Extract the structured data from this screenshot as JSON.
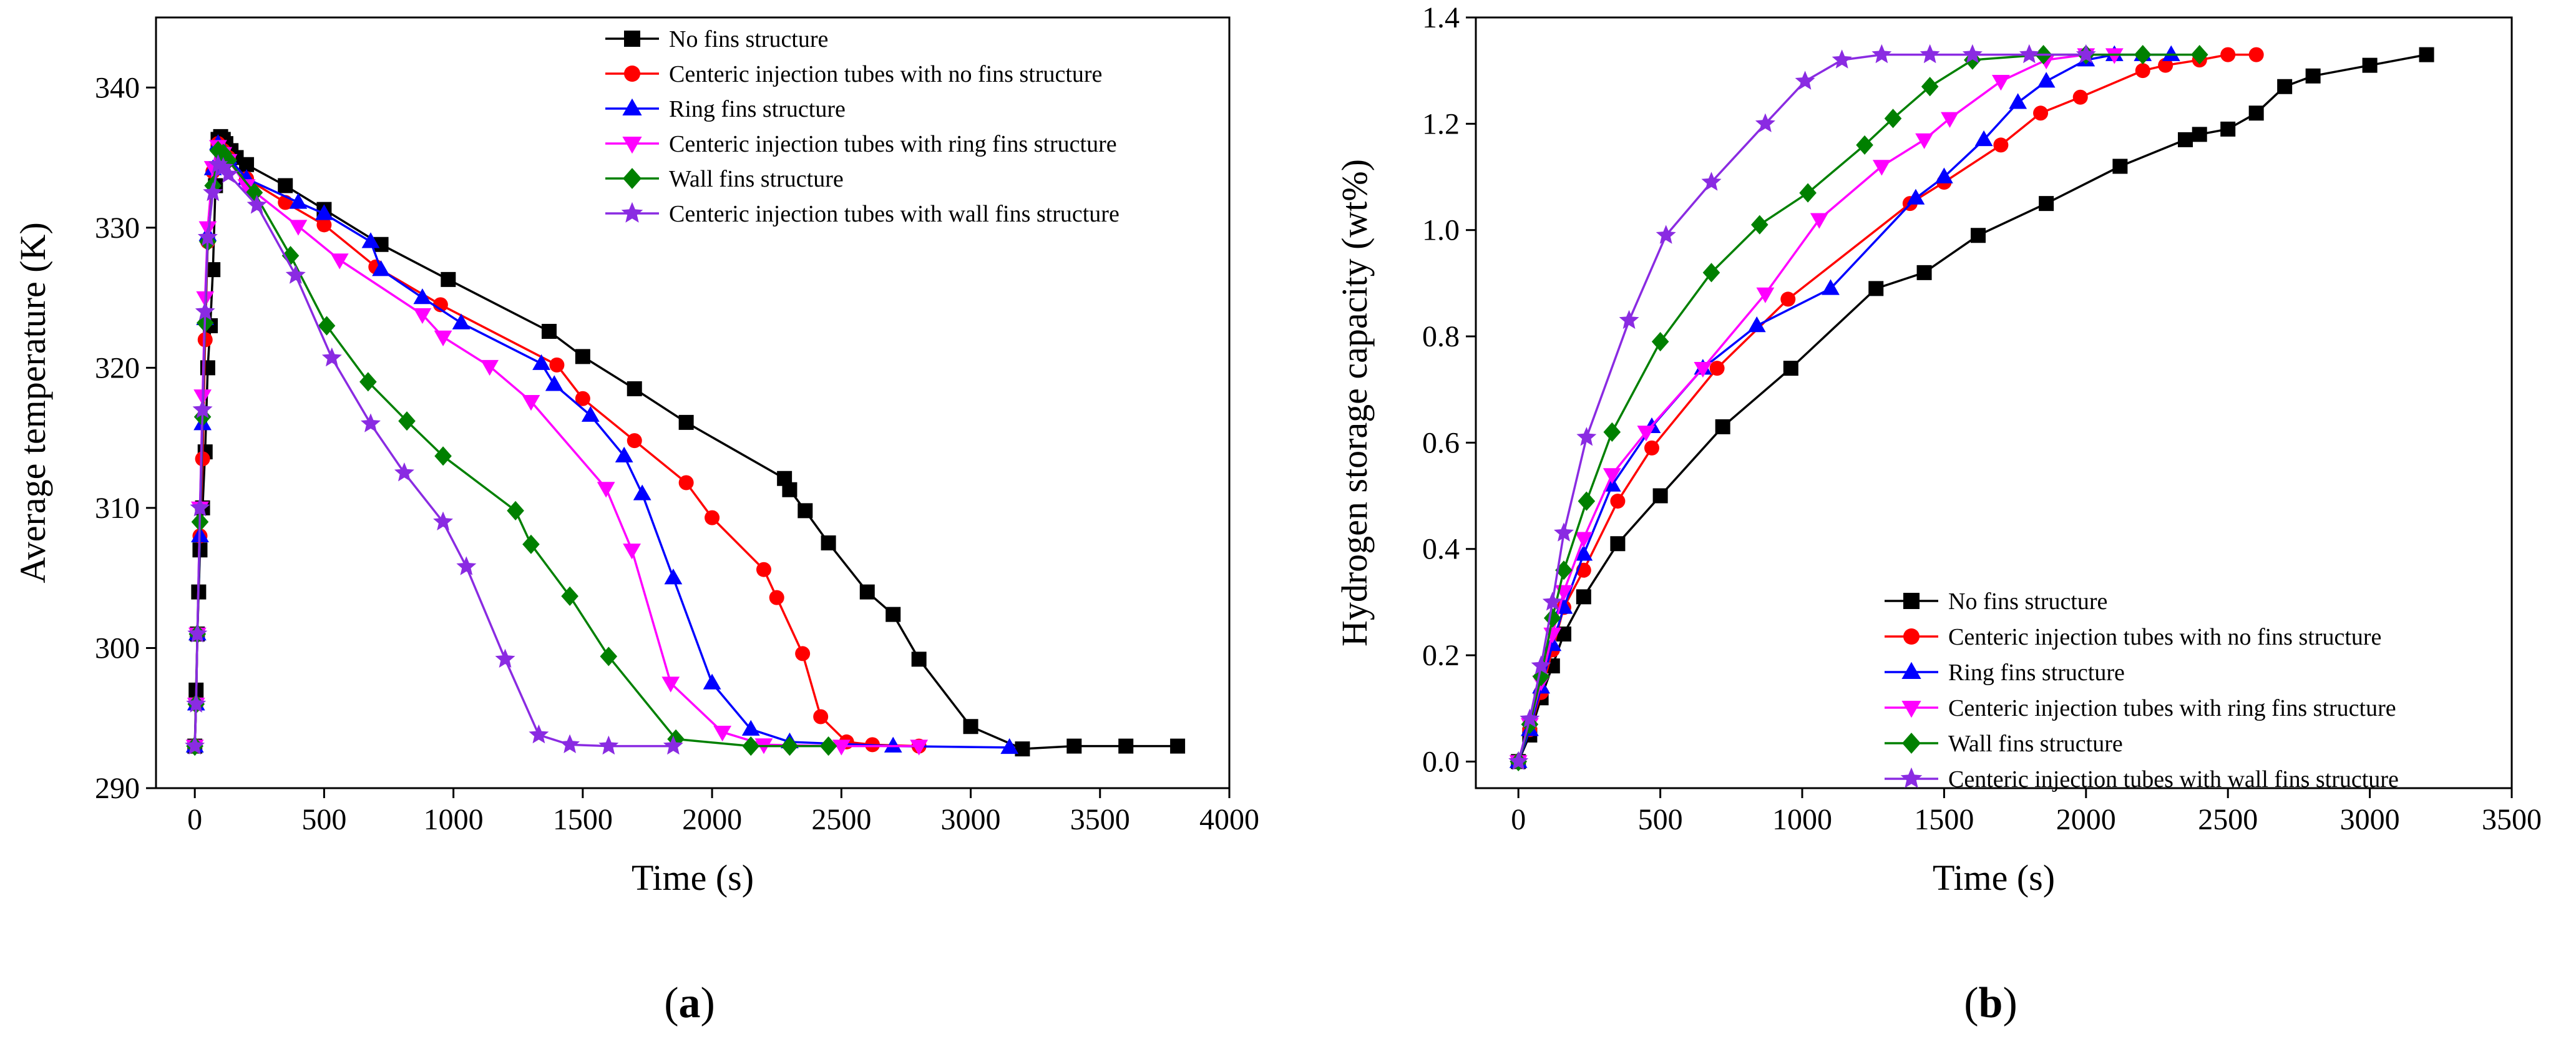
{
  "series_styles": [
    {
      "color": "#000000",
      "marker": "square"
    },
    {
      "color": "#ff0000",
      "marker": "circle"
    },
    {
      "color": "#0000ff",
      "marker": "triangle-up"
    },
    {
      "color": "#ff00ff",
      "marker": "triangle-down"
    },
    {
      "color": "#008000",
      "marker": "diamond"
    },
    {
      "color": "#8a2be2",
      "marker": "star"
    }
  ],
  "chart_data": [
    {
      "type": "line",
      "caption_letter": "a",
      "xlabel": "Time (s)",
      "ylabel": "Average temperature (K)",
      "xlim": [
        -150,
        4000
      ],
      "ylim": [
        290,
        345
      ],
      "xticks": [
        0,
        500,
        1000,
        1500,
        2000,
        2500,
        3000,
        3500,
        4000
      ],
      "yticks": [
        290,
        300,
        310,
        320,
        330,
        340
      ],
      "grid": false,
      "legend_position": "top-right",
      "series": [
        {
          "name": "No fins structure",
          "x": [
            0,
            5,
            10,
            15,
            20,
            30,
            40,
            50,
            60,
            70,
            80,
            90,
            100,
            110,
            120,
            140,
            160,
            200,
            350,
            500,
            720,
            980,
            1370,
            1500,
            1700,
            1900,
            2280,
            2300,
            2360,
            2450,
            2600,
            2700,
            2800,
            3000,
            3200,
            3400,
            3600,
            3800
          ],
          "y": [
            293,
            297,
            301,
            304,
            307,
            310,
            314,
            320,
            323,
            327,
            333,
            336.3,
            336.5,
            336.3,
            336,
            335.5,
            335,
            334.5,
            333,
            331.3,
            328.8,
            326.3,
            322.6,
            320.8,
            318.5,
            316.1,
            312.1,
            311.3,
            309.8,
            307.5,
            304,
            302.4,
            299.2,
            294.4,
            292.8,
            293,
            293,
            293
          ]
        },
        {
          "name": "Centeric injection tubes with no fins structure",
          "x": [
            0,
            5,
            10,
            20,
            30,
            40,
            50,
            70,
            90,
            110,
            130,
            200,
            350,
            500,
            700,
            950,
            1400,
            1500,
            1700,
            1900,
            2000,
            2200,
            2250,
            2350,
            2420,
            2520,
            2620,
            2800
          ],
          "y": [
            293,
            296,
            301,
            308,
            313.5,
            322,
            329,
            334,
            336,
            335.5,
            335,
            333.5,
            331.8,
            330.2,
            327.2,
            324.5,
            320.2,
            317.8,
            314.8,
            311.8,
            309.3,
            305.6,
            303.6,
            299.6,
            295.1,
            293.3,
            293.1,
            293
          ]
        },
        {
          "name": "Ring fins structure",
          "x": [
            0,
            5,
            10,
            20,
            30,
            40,
            50,
            70,
            90,
            110,
            130,
            200,
            400,
            500,
            680,
            720,
            880,
            1030,
            1340,
            1390,
            1530,
            1660,
            1730,
            1850,
            2000,
            2150,
            2300,
            2700,
            3150
          ],
          "y": [
            293,
            296,
            301,
            308,
            316,
            323.5,
            329.5,
            334.2,
            336,
            335.5,
            335,
            333.5,
            331.8,
            331,
            329,
            327,
            325,
            323.2,
            320.3,
            318.8,
            316.6,
            313.7,
            311,
            305,
            297.5,
            294.2,
            293.3,
            293,
            292.9
          ]
        },
        {
          "name": "Centeric injection tubes with ring fins structure",
          "x": [
            0,
            5,
            10,
            20,
            30,
            40,
            50,
            70,
            90,
            110,
            130,
            200,
            400,
            560,
            880,
            960,
            1140,
            1300,
            1590,
            1690,
            1840,
            2040,
            2200,
            2500,
            2800
          ],
          "y": [
            293,
            296,
            301,
            310,
            318,
            325,
            330,
            334.3,
            335.8,
            335.3,
            334.8,
            333,
            330.1,
            327.7,
            323.8,
            322.2,
            320.1,
            317.6,
            311.4,
            307,
            297.5,
            294,
            293.1,
            293,
            293
          ]
        },
        {
          "name": "Wall fins structure",
          "x": [
            0,
            5,
            10,
            20,
            30,
            40,
            50,
            70,
            90,
            110,
            130,
            230,
            370,
            510,
            670,
            820,
            960,
            1240,
            1300,
            1450,
            1600,
            1860,
            2150,
            2300,
            2450
          ],
          "y": [
            293,
            296,
            301,
            309,
            316.5,
            323.2,
            329,
            333,
            335.5,
            335.3,
            334.8,
            332.5,
            328,
            323,
            319,
            316.2,
            313.7,
            309.8,
            307.4,
            303.7,
            299.4,
            293.5,
            293,
            293,
            293
          ]
        },
        {
          "name": "Centeric injection tubes with wall fins structure",
          "x": [
            0,
            5,
            10,
            20,
            30,
            40,
            50,
            70,
            90,
            110,
            130,
            240,
            390,
            530,
            680,
            810,
            960,
            1050,
            1200,
            1330,
            1450,
            1600,
            1850
          ],
          "y": [
            293,
            296,
            301,
            310,
            317,
            324,
            329.3,
            332.5,
            334.5,
            334.3,
            333.8,
            331.6,
            326.6,
            320.7,
            316,
            312.5,
            309,
            305.8,
            299.2,
            293.8,
            293.1,
            293,
            293
          ]
        }
      ]
    },
    {
      "type": "line",
      "caption_letter": "b",
      "xlabel": "Time (s)",
      "ylabel": "Hydrogen storage capacity (wt%)",
      "xlim": [
        -150,
        3500
      ],
      "ylim": [
        -0.05,
        1.4
      ],
      "xticks": [
        0,
        500,
        1000,
        1500,
        2000,
        2500,
        3000,
        3500
      ],
      "yticks": [
        0.0,
        0.2,
        0.4,
        0.6,
        0.8,
        1.0,
        1.2,
        1.4
      ],
      "grid": false,
      "legend_position": "bottom-right",
      "series": [
        {
          "name": "No fins structure",
          "x": [
            0,
            40,
            80,
            120,
            160,
            230,
            350,
            500,
            720,
            960,
            1260,
            1430,
            1620,
            1860,
            2120,
            2350,
            2400,
            2500,
            2600,
            2700,
            2800,
            3000,
            3200
          ],
          "y": [
            0,
            0.05,
            0.12,
            0.18,
            0.24,
            0.31,
            0.41,
            0.5,
            0.63,
            0.74,
            0.89,
            0.92,
            0.99,
            1.05,
            1.12,
            1.17,
            1.18,
            1.19,
            1.22,
            1.27,
            1.29,
            1.31,
            1.33
          ]
        },
        {
          "name": "Centeric injection tubes with no fins structure",
          "x": [
            0,
            40,
            80,
            120,
            160,
            230,
            350,
            470,
            700,
            950,
            1380,
            1500,
            1700,
            1840,
            1980,
            2200,
            2280,
            2400,
            2500,
            2600
          ],
          "y": [
            0,
            0.06,
            0.13,
            0.21,
            0.29,
            0.36,
            0.49,
            0.59,
            0.74,
            0.87,
            1.05,
            1.09,
            1.16,
            1.22,
            1.25,
            1.3,
            1.31,
            1.32,
            1.33,
            1.33
          ]
        },
        {
          "name": "Ring fins structure",
          "x": [
            0,
            40,
            80,
            120,
            160,
            230,
            330,
            470,
            650,
            840,
            1100,
            1400,
            1500,
            1640,
            1760,
            1860,
            2000,
            2100,
            2200,
            2300
          ],
          "y": [
            0,
            0.06,
            0.14,
            0.22,
            0.29,
            0.39,
            0.52,
            0.63,
            0.74,
            0.82,
            0.89,
            1.06,
            1.1,
            1.17,
            1.24,
            1.28,
            1.32,
            1.33,
            1.33,
            1.33
          ]
        },
        {
          "name": "Centeric injection tubes with ring fins structure",
          "x": [
            0,
            40,
            80,
            120,
            160,
            230,
            330,
            450,
            650,
            870,
            1060,
            1280,
            1430,
            1520,
            1700,
            1860,
            2000,
            2100
          ],
          "y": [
            0,
            0.07,
            0.15,
            0.24,
            0.32,
            0.42,
            0.54,
            0.62,
            0.74,
            0.88,
            1.02,
            1.12,
            1.17,
            1.21,
            1.28,
            1.32,
            1.33,
            1.33
          ]
        },
        {
          "name": "Wall fins structure",
          "x": [
            0,
            40,
            80,
            120,
            160,
            240,
            330,
            500,
            680,
            850,
            1020,
            1220,
            1320,
            1450,
            1600,
            1850,
            2000,
            2200,
            2400
          ],
          "y": [
            0,
            0.07,
            0.16,
            0.27,
            0.36,
            0.49,
            0.62,
            0.79,
            0.92,
            1.01,
            1.07,
            1.16,
            1.21,
            1.27,
            1.32,
            1.33,
            1.33,
            1.33,
            1.33
          ]
        },
        {
          "name": "Centeric injection tubes with wall fins structure",
          "x": [
            0,
            40,
            80,
            120,
            160,
            240,
            390,
            520,
            680,
            870,
            1010,
            1140,
            1280,
            1450,
            1600,
            1800,
            2000
          ],
          "y": [
            0,
            0.08,
            0.18,
            0.3,
            0.43,
            0.61,
            0.83,
            0.99,
            1.09,
            1.2,
            1.28,
            1.32,
            1.33,
            1.33,
            1.33,
            1.33,
            1.33
          ]
        }
      ]
    }
  ]
}
